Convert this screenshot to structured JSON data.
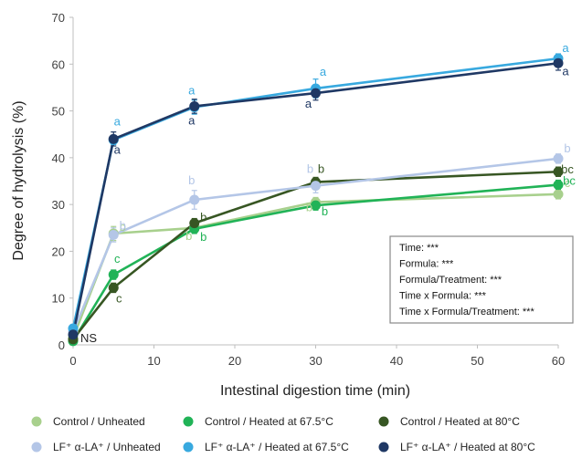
{
  "chart_data": {
    "type": "line",
    "xlabel": "Intestinal digestion time (min)",
    "ylabel": "Degree of hydrolysis (%)",
    "xlim": [
      0,
      60
    ],
    "ylim": [
      0,
      70
    ],
    "xticks": [
      0,
      10,
      20,
      30,
      40,
      50,
      60
    ],
    "yticks": [
      0,
      10,
      20,
      30,
      40,
      50,
      60,
      70
    ],
    "grid": false,
    "legend_position": "bottom",
    "x": [
      0,
      5,
      15,
      30,
      60
    ],
    "series": [
      {
        "name": "Control / Unheated",
        "color": "#a8d08d",
        "values": [
          1.5,
          23.8,
          25.0,
          30.5,
          32.2
        ],
        "errors": [
          0.5,
          1.5,
          1.0,
          1.0,
          1.0
        ],
        "letters": [
          "",
          "b",
          "b",
          "b",
          "c"
        ]
      },
      {
        "name": "Control / Heated at 67.5°C",
        "color": "#21b357",
        "values": [
          0.8,
          15.0,
          24.8,
          29.8,
          34.2
        ],
        "errors": [
          0.5,
          1.0,
          1.0,
          1.0,
          1.0
        ],
        "letters": [
          "",
          "c",
          "b",
          "b",
          "bc"
        ]
      },
      {
        "name": "Control / Heated at 80°C",
        "color": "#375623",
        "values": [
          1.2,
          12.2,
          26.0,
          34.8,
          37.0
        ],
        "errors": [
          0.5,
          1.0,
          1.0,
          1.0,
          1.0
        ],
        "letters": [
          "",
          "c",
          "b",
          "b",
          "bc"
        ]
      },
      {
        "name": "LF⁺ α-LA⁺ / Unheated",
        "color": "#b4c6e7",
        "values": [
          2.8,
          23.5,
          31.0,
          34.0,
          39.8
        ],
        "errors": [
          0.5,
          1.5,
          2.0,
          1.5,
          1.0
        ],
        "letters": [
          "",
          "b",
          "b",
          "b",
          "b"
        ]
      },
      {
        "name": "LF⁺ α-LA⁺ / Heated at 67.5°C",
        "color": "#38a9df",
        "values": [
          3.5,
          43.8,
          50.8,
          54.8,
          61.2
        ],
        "errors": [
          0.5,
          1.0,
          1.5,
          2.0,
          1.0
        ],
        "letters": [
          "",
          "a",
          "a",
          "a",
          "a"
        ]
      },
      {
        "name": "LF⁺ α-LA⁺ / Heated at 80°C",
        "color": "#1f3864",
        "values": [
          2.2,
          44.0,
          51.0,
          53.8,
          60.2
        ],
        "errors": [
          0.5,
          1.5,
          1.5,
          1.5,
          1.5
        ],
        "letters": [
          "",
          "a",
          "a",
          "a",
          "a"
        ]
      }
    ],
    "annotations": {
      "ns_label": "NS",
      "stats": [
        "Time: ***",
        "Formula: ***",
        "Formula/Treatment: ***",
        "Time x Formula: ***",
        "Time x Formula/Treatment: ***"
      ]
    }
  }
}
